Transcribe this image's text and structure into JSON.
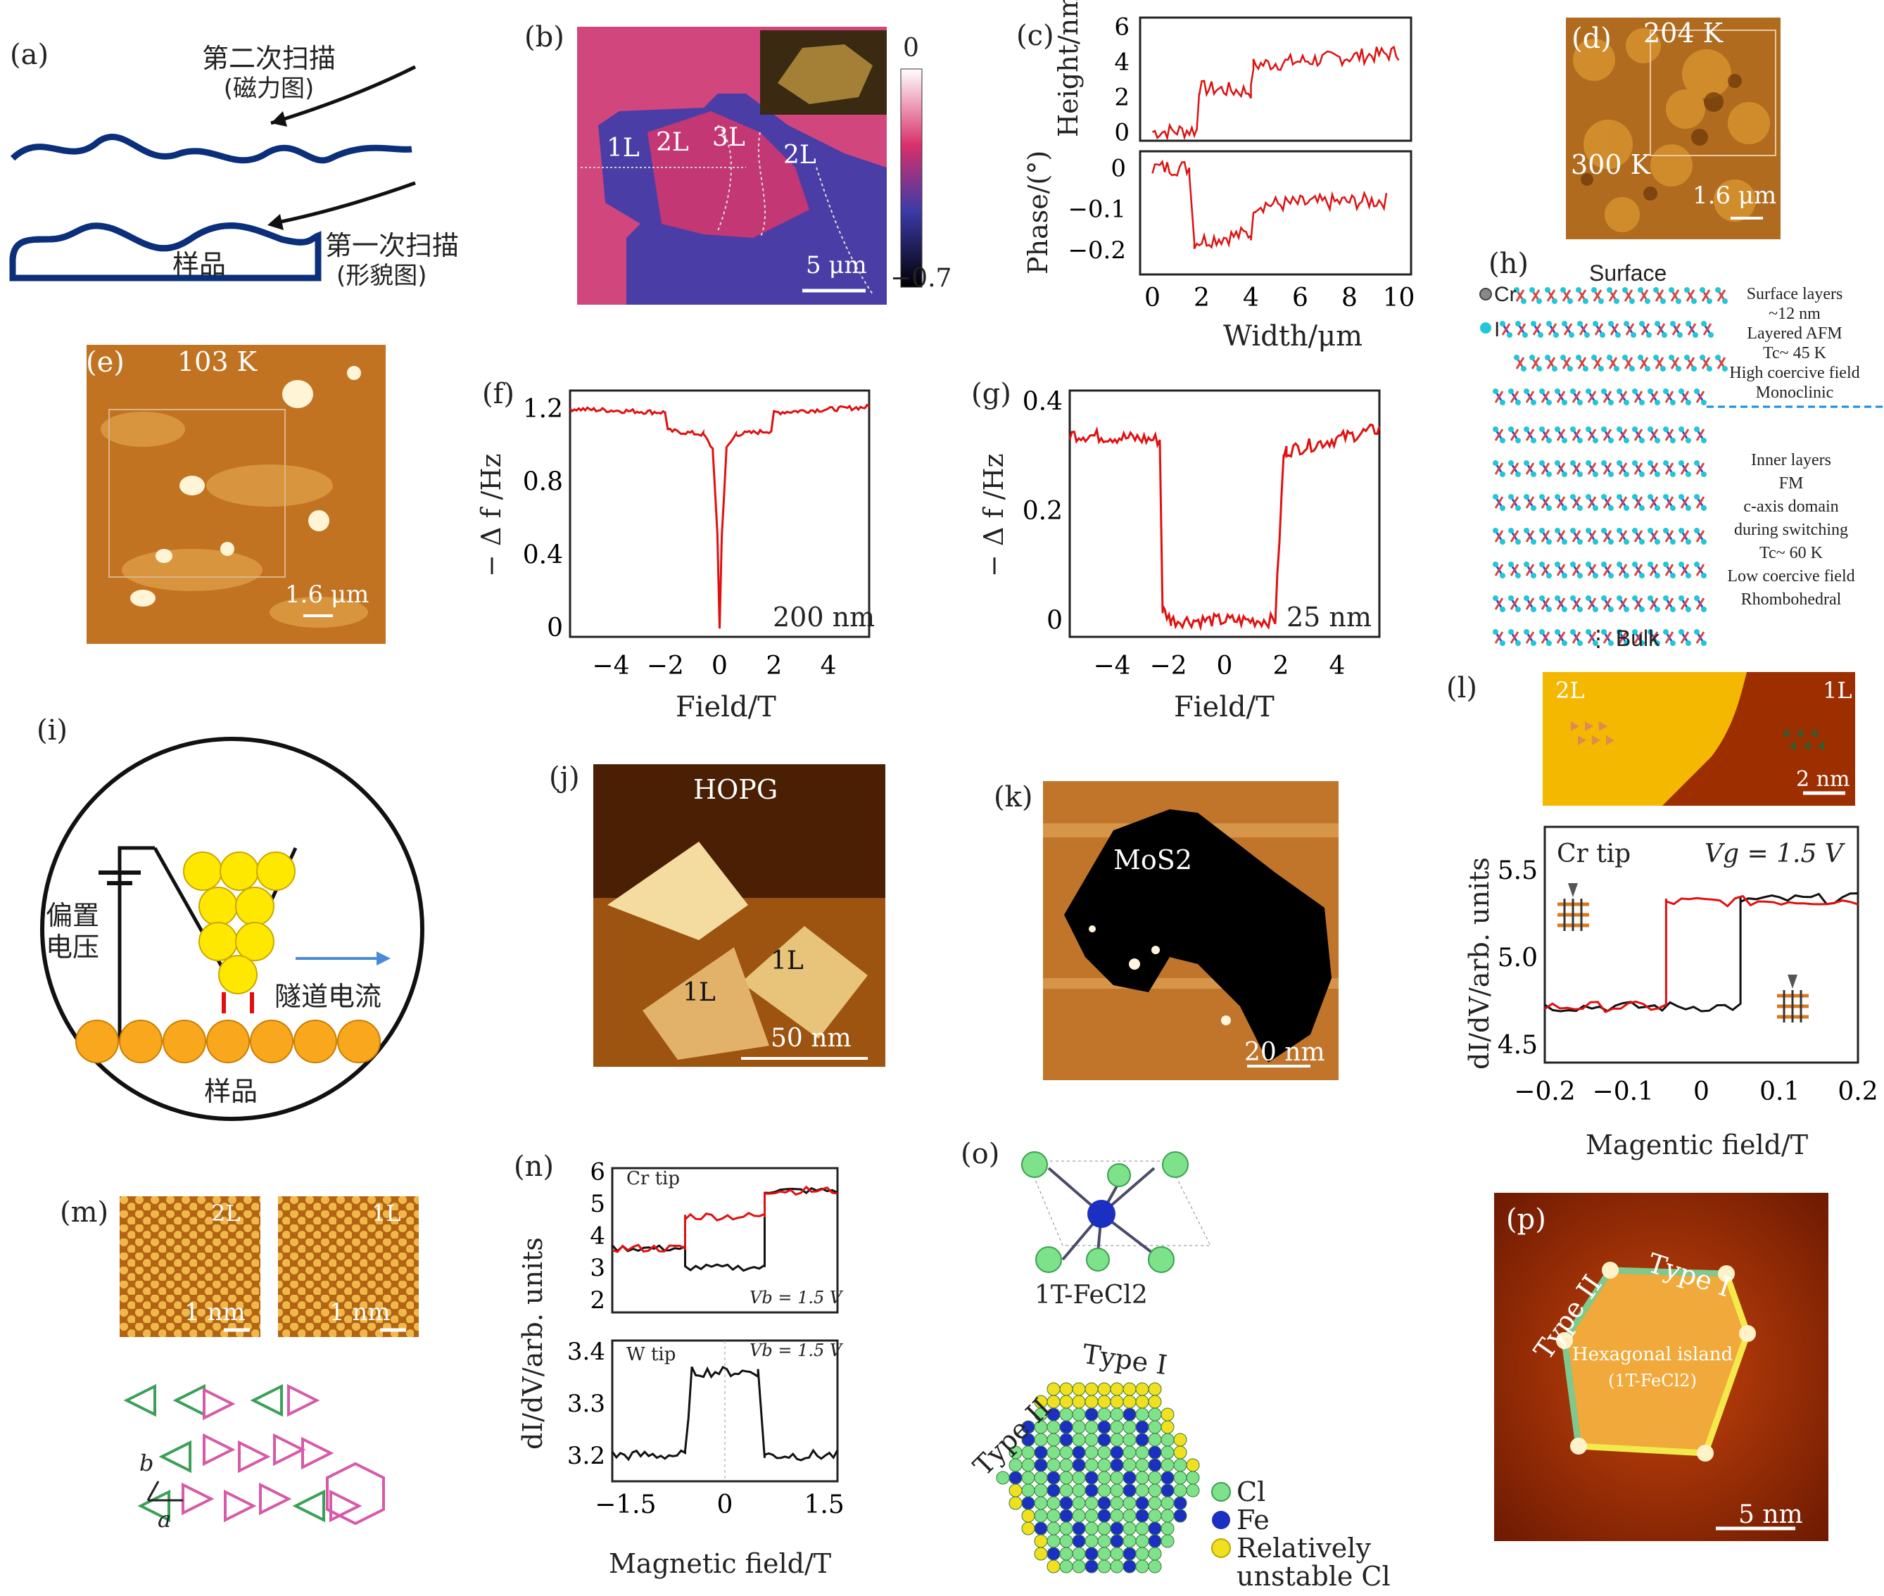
{
  "panels": {
    "a": {
      "label": "(a)",
      "second_scan": "第二次扫描",
      "second_scan_sub": "(磁力图)",
      "first_scan": "第一次扫描",
      "first_scan_sub": "(形貌图)",
      "sample": "样品"
    },
    "b": {
      "label": "(b)",
      "layers": [
        "1L",
        "2L",
        "3L",
        "2L"
      ],
      "scale": "5 μm",
      "cbar_max": "0",
      "cbar_min": "−0.7"
    },
    "c": {
      "label": "(c)",
      "ylabel_top": "Height/nm",
      "ylabel_bot": "Phase/(°)",
      "xlabel": "Width/μm",
      "yticks_top": [
        "6",
        "4",
        "2",
        "0"
      ],
      "yticks_bot": [
        "0",
        "−0.1",
        "−0.2"
      ],
      "xticks": [
        "0",
        "2",
        "4",
        "6",
        "8",
        "10"
      ]
    },
    "d": {
      "label": "(d)",
      "temp1": "204 K",
      "temp2": "300 K",
      "scale": "1.6 μm"
    },
    "e": {
      "label": "(e)",
      "temp": "103 K",
      "scale": "1.6 μm"
    },
    "f": {
      "label": "(f)",
      "ylabel": "− Δ f /Hz",
      "xlabel": "Field/T",
      "note": "200 nm",
      "yticks": [
        "1.2",
        "0.8",
        "0.4",
        "0"
      ],
      "xticks": [
        "−4",
        "−2",
        "0",
        "2",
        "4"
      ]
    },
    "g": {
      "label": "(g)",
      "ylabel": "− Δ f /Hz",
      "xlabel": "Field/T",
      "note": "25 nm",
      "yticks": [
        "0.4",
        "0.2",
        "0"
      ],
      "xticks": [
        "−4",
        "−2",
        "0",
        "2",
        "4"
      ]
    },
    "h": {
      "label": "(h)",
      "title": "Surface",
      "cr": "Cr",
      "i": "I",
      "surface_lines": [
        "Surface layers",
        "~12 nm",
        "Layered AFM",
        "Tc~ 45 K",
        "High coercive field",
        "Monoclinic"
      ],
      "inner_lines": [
        "Inner layers",
        "FM",
        "c-axis domain",
        "during switching",
        "Tc~ 60 K",
        "Low coercive field",
        "Rhombohedral"
      ],
      "bulk": "⋮ Bulk"
    },
    "i": {
      "label": "(i)",
      "bias1": "偏置",
      "bias2": "电压",
      "current": "隧道电流",
      "sample": "样品"
    },
    "j": {
      "label": "(j)",
      "title": "HOPG",
      "l1": "1L",
      "l2": "1L",
      "scale": "50 nm"
    },
    "k": {
      "label": "(k)",
      "title": "MoS2",
      "scale": "20 nm"
    },
    "l": {
      "label": "(l)",
      "left": "2L",
      "right": "1L",
      "scale": "2 nm",
      "tip": "Cr tip",
      "vg": "Vg = 1.5 V",
      "ylabel": "dI/dV/arb. units",
      "xlabel": "Magentic field/T",
      "yticks": [
        "5.5",
        "5.0",
        "4.5"
      ],
      "xticks": [
        "−0.2",
        "−0.1",
        "0",
        "0.1",
        "0.2"
      ]
    },
    "m": {
      "label": "(m)",
      "left": "2L",
      "right": "1L",
      "scale": "1 nm",
      "b": "b",
      "a": "a"
    },
    "n": {
      "label": "(n)",
      "top_tip": "Cr tip",
      "bot_tip": "W tip",
      "vb": "Vb = 1.5 V",
      "vb2": "Vb = 1.5 V",
      "ylabel": "dI/dV/arb. units",
      "xlabel": "Magnetic field/T",
      "yticks_top": [
        "6",
        "5",
        "4",
        "3",
        "2"
      ],
      "yticks_bot": [
        "3.4",
        "3.3",
        "3.2"
      ],
      "xticks": [
        "−1.5",
        "0",
        "1.5"
      ]
    },
    "o": {
      "label": "(o)",
      "molecule": "1T-FeCl2",
      "type1": "Type I",
      "type2": "Type II",
      "legend": [
        "Cl",
        "Fe",
        "Relatively",
        "unstable Cl"
      ]
    },
    "p": {
      "label": "(p)",
      "type1": "Type I",
      "type2": "Type II",
      "island": "Hexagonal island",
      "island_sub": "(1T-FeCl2)",
      "scale": "5 nm"
    }
  },
  "chart_data": [
    {
      "type": "line",
      "title": "(c) top",
      "xlabel": "Width/μm",
      "ylabel": "Height/nm",
      "xlim": [
        0,
        10
      ],
      "ylim": [
        -0.5,
        6.5
      ],
      "series": [
        {
          "name": "height",
          "x": [
            0,
            1.8,
            1.9,
            4,
            4.1,
            10
          ],
          "y": [
            0,
            0.1,
            2.5,
            2.3,
            3.8,
            4.5
          ]
        }
      ]
    },
    {
      "type": "line",
      "title": "(c) bottom",
      "xlabel": "Width/μm",
      "ylabel": "Phase/(°)",
      "xlim": [
        0,
        10
      ],
      "ylim": [
        -0.26,
        0.04
      ],
      "series": [
        {
          "name": "phase",
          "x": [
            0,
            1.5,
            1.7,
            4,
            4.2,
            9.5
          ],
          "y": [
            0,
            0,
            -0.18,
            -0.16,
            -0.09,
            -0.08
          ]
        }
      ]
    },
    {
      "type": "line",
      "title": "(f)",
      "xlabel": "Field/T",
      "ylabel": "−Δf/Hz",
      "xlim": [
        -5.5,
        5.5
      ],
      "ylim": [
        -0.05,
        1.3
      ],
      "series": [
        {
          "name": "200 nm",
          "x": [
            -5.5,
            -2,
            -1.9,
            -0.6,
            -0.25,
            -0.08,
            0,
            0.08,
            0.25,
            0.6,
            1.9,
            2,
            5.5
          ],
          "y": [
            1.2,
            1.18,
            1.08,
            1.06,
            0.98,
            0.5,
            0,
            0.5,
            0.98,
            1.06,
            1.08,
            1.18,
            1.21
          ]
        }
      ]
    },
    {
      "type": "line",
      "title": "(g)",
      "xlabel": "Field/T",
      "ylabel": "−Δf/Hz",
      "xlim": [
        -5.5,
        5.5
      ],
      "ylim": [
        -0.03,
        0.42
      ],
      "series": [
        {
          "name": "25 nm",
          "x": [
            -5.5,
            -2.3,
            -2.2,
            -1.9,
            1.8,
            2.1,
            2.2,
            5.5
          ],
          "y": [
            0.34,
            0.33,
            0.02,
            0.0,
            0.0,
            0.3,
            0.31,
            0.35
          ]
        }
      ]
    },
    {
      "type": "line",
      "title": "(l)",
      "xlabel": "Magentic field/T",
      "ylabel": "dI/dV/arb. units",
      "xlim": [
        -0.2,
        0.2
      ],
      "ylim": [
        4.4,
        5.75
      ],
      "series": [
        {
          "name": "red",
          "x": [
            -0.2,
            -0.045,
            -0.045,
            0.2
          ],
          "y": [
            4.72,
            4.72,
            5.32,
            5.33
          ]
        },
        {
          "name": "black",
          "x": [
            -0.2,
            0.05,
            0.05,
            0.2
          ],
          "y": [
            4.72,
            4.72,
            5.33,
            5.34
          ]
        }
      ]
    },
    {
      "type": "line",
      "title": "(n) Cr tip",
      "xlabel": "Magnetic field/T",
      "ylabel": "dI/dV/arb. units",
      "xlim": [
        -1.7,
        1.7
      ],
      "ylim": [
        1.6,
        6.1
      ],
      "series": [
        {
          "name": "red",
          "x": [
            -1.7,
            -0.6,
            -0.6,
            0.6,
            0.6,
            1.7
          ],
          "y": [
            3.6,
            3.6,
            4.6,
            4.6,
            5.4,
            5.4
          ]
        },
        {
          "name": "black",
          "x": [
            -1.7,
            -0.6,
            -0.6,
            0.6,
            0.6,
            1.7
          ],
          "y": [
            3.6,
            3.6,
            3.0,
            3.0,
            5.4,
            5.4
          ]
        }
      ]
    },
    {
      "type": "line",
      "title": "(n) W tip",
      "xlabel": "Magnetic field/T",
      "ylabel": "dI/dV/arb. units",
      "xlim": [
        -1.7,
        1.7
      ],
      "ylim": [
        3.15,
        3.42
      ],
      "series": [
        {
          "name": "black",
          "x": [
            -1.7,
            -0.6,
            -0.5,
            0.5,
            0.6,
            1.7
          ],
          "y": [
            3.2,
            3.2,
            3.36,
            3.36,
            3.2,
            3.2
          ]
        }
      ]
    }
  ]
}
